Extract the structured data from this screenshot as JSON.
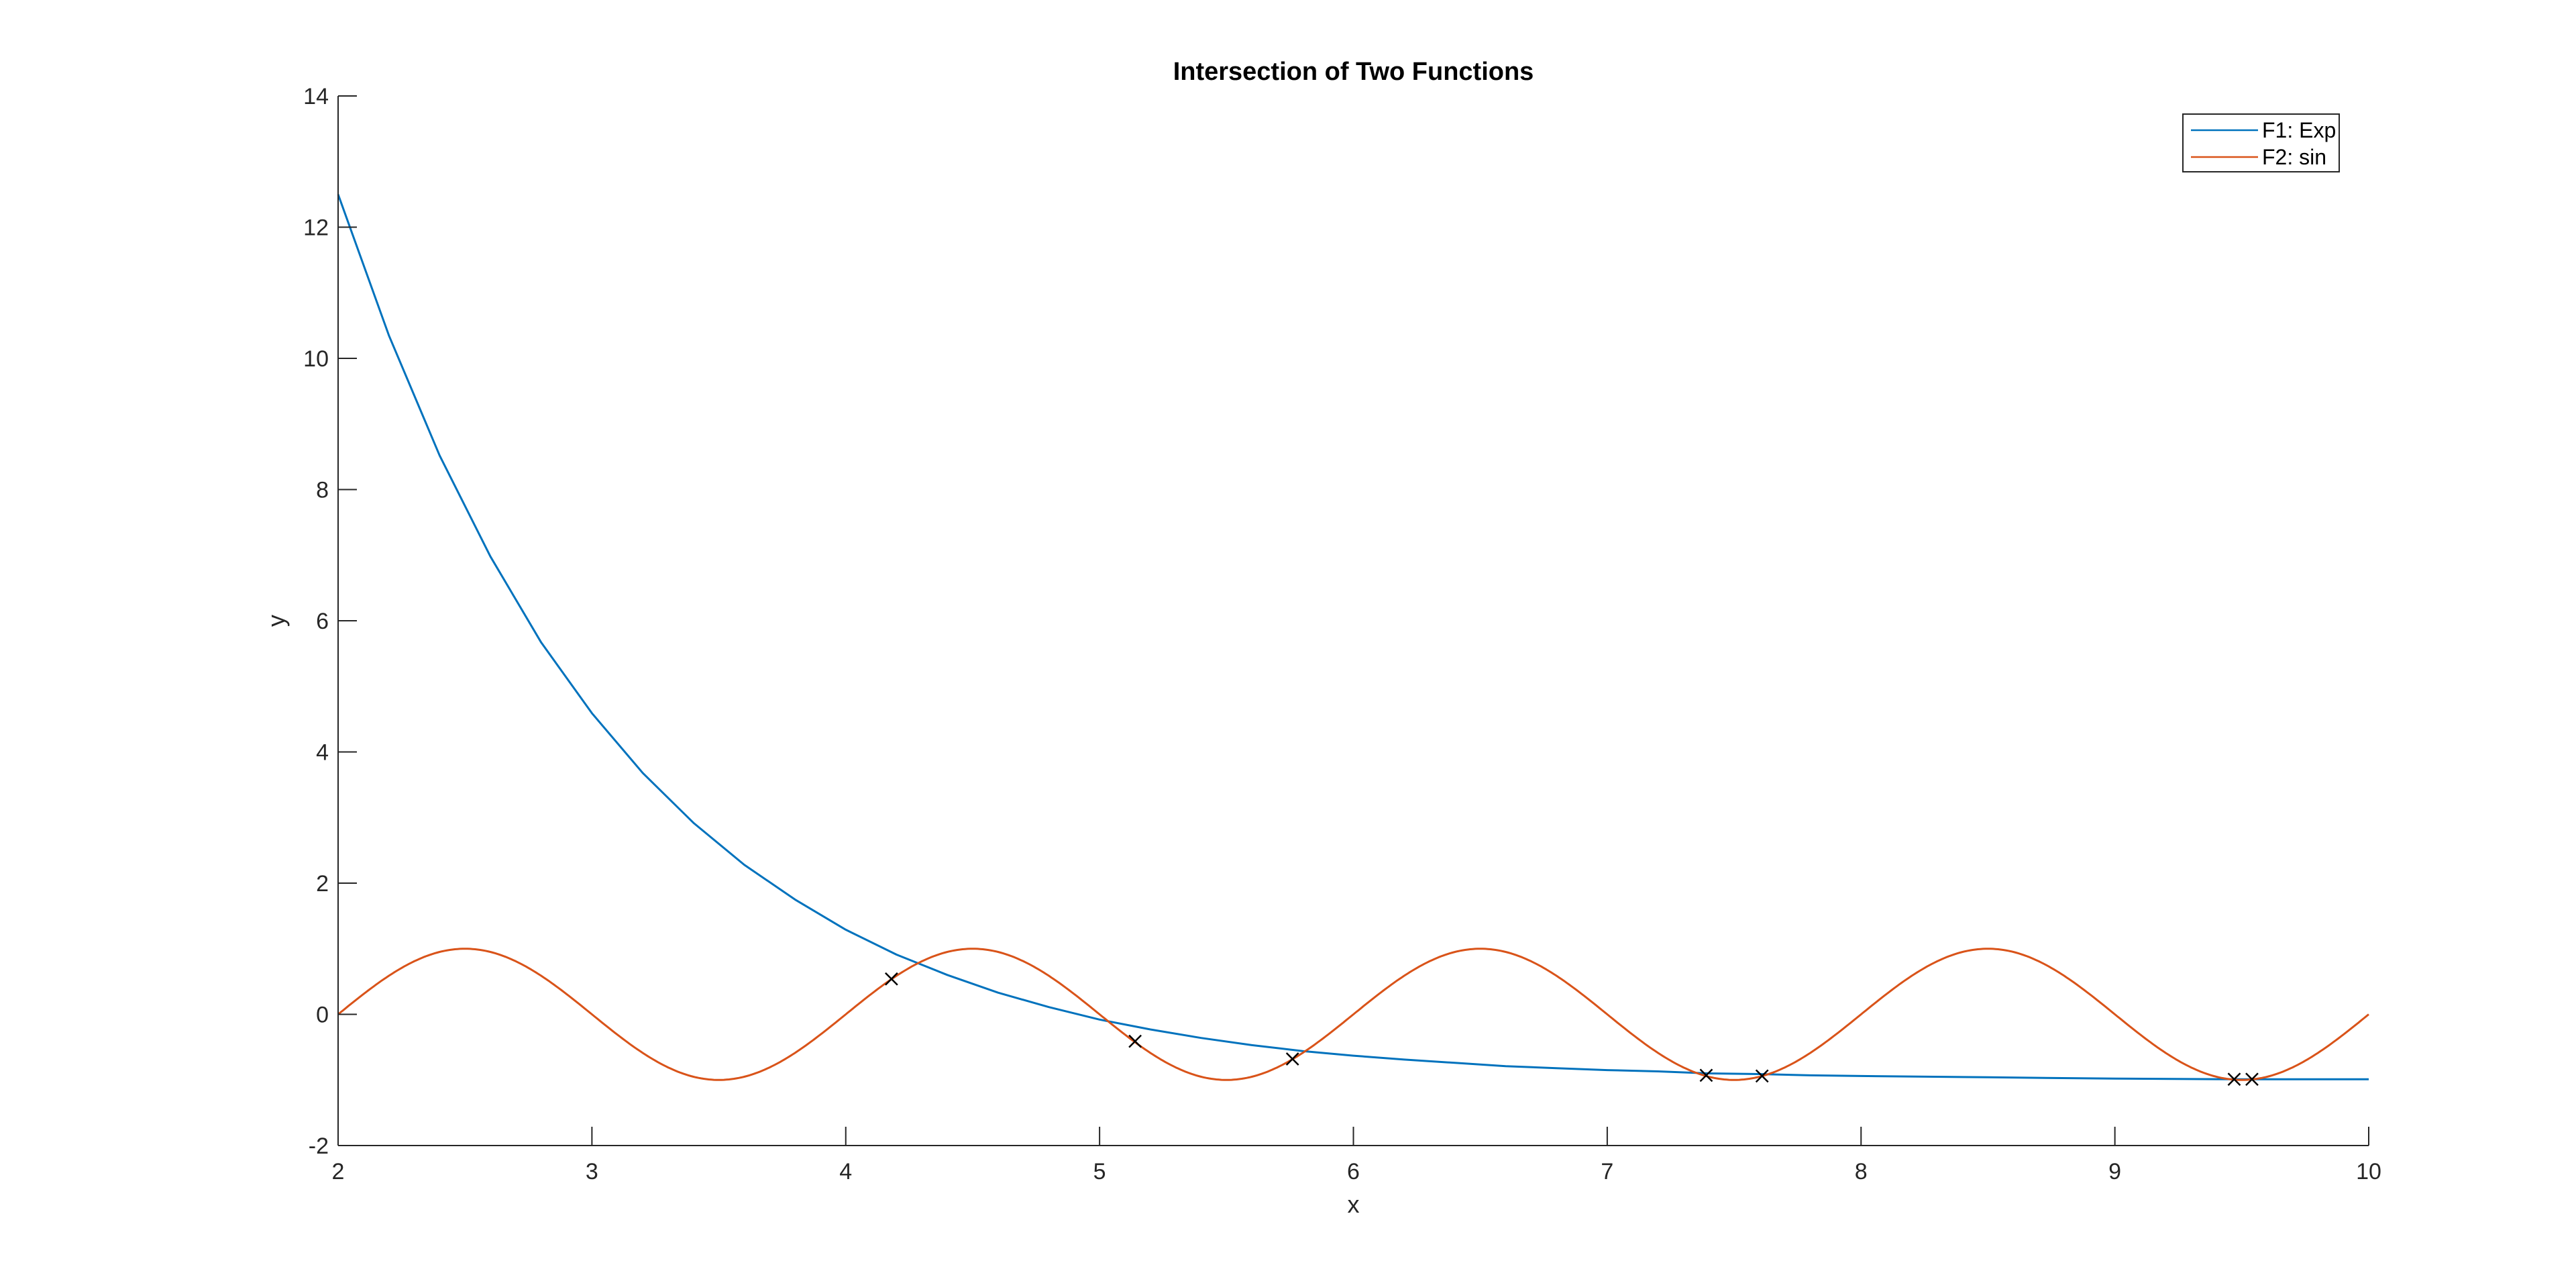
{
  "chart_data": {
    "type": "line",
    "title": "Intersection of Two Functions",
    "xlabel": "x",
    "ylabel": "y",
    "xlim": [
      2,
      10
    ],
    "ylim": [
      -2,
      14
    ],
    "xticks": [
      2,
      3,
      4,
      5,
      6,
      7,
      8,
      9,
      10
    ],
    "yticks": [
      -2,
      0,
      2,
      4,
      6,
      8,
      10,
      12,
      14
    ],
    "grid": false,
    "legend_position": "top-right",
    "series": [
      {
        "name": "F1: Exp",
        "color": "#0072BD",
        "x": [
          2.0,
          2.2,
          2.4,
          2.6,
          2.8,
          3.0,
          3.2,
          3.4,
          3.6,
          3.8,
          4.0,
          4.2,
          4.4,
          4.6,
          4.8,
          5.0,
          5.2,
          5.4,
          5.6,
          5.8,
          6.0,
          6.2,
          6.4,
          6.6,
          6.8,
          7.0,
          7.2,
          7.4,
          7.6,
          7.8,
          8.0,
          8.5,
          9.0,
          9.5,
          10.0
        ],
        "y": [
          12.5,
          10.35,
          8.52,
          6.98,
          5.67,
          4.59,
          3.68,
          2.92,
          2.28,
          1.75,
          1.29,
          0.91,
          0.6,
          0.33,
          0.11,
          -0.08,
          -0.23,
          -0.36,
          -0.47,
          -0.56,
          -0.63,
          -0.69,
          -0.74,
          -0.79,
          -0.82,
          -0.85,
          -0.87,
          -0.9,
          -0.91,
          -0.93,
          -0.94,
          -0.96,
          -0.98,
          -0.99,
          -0.99
        ]
      },
      {
        "name": "F2: sin",
        "color": "#D95319",
        "function": "sin(pi*(x-2))",
        "x_range": [
          2,
          10
        ]
      }
    ],
    "intersections": {
      "marker": "x",
      "color": "#000000",
      "x": [
        4.18,
        5.14,
        5.76,
        7.39,
        7.61,
        9.47,
        9.54
      ],
      "y": [
        0.54,
        -0.41,
        -0.68,
        -0.93,
        -0.94,
        -0.99,
        -0.99
      ]
    }
  }
}
